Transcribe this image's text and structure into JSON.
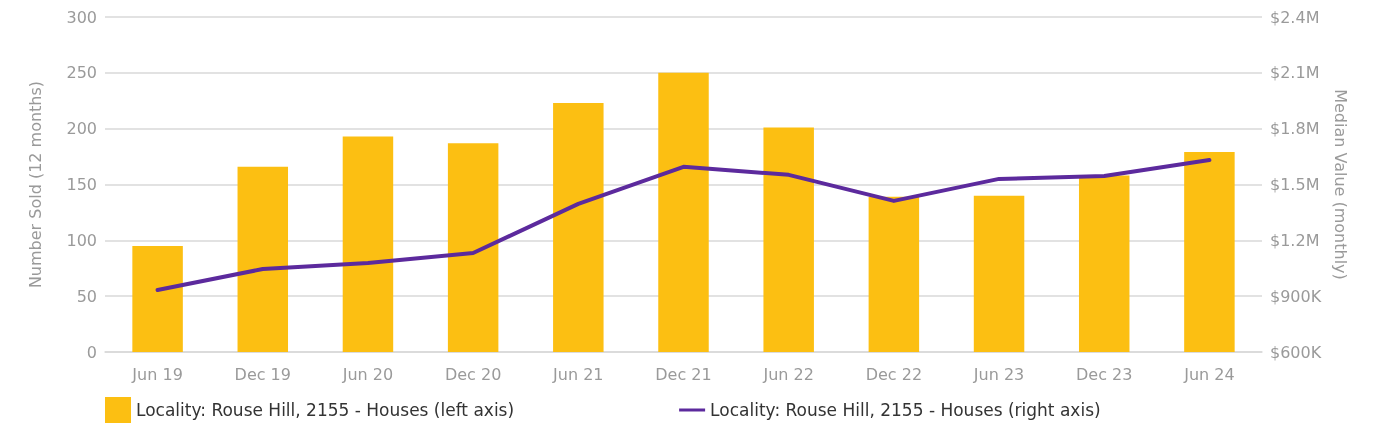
{
  "chart_data": {
    "type": "bar",
    "xlabel": null,
    "ylabel": "Number Sold (12 months)",
    "y2label": "Median Value (monthly)",
    "categories": [
      "Jun 19",
      "Dec 19",
      "Jun 20",
      "Dec 20",
      "Jun 21",
      "Dec 21",
      "Jun 22",
      "Dec 22",
      "Jun 23",
      "Dec 23",
      "Jun 24"
    ],
    "series": [
      {
        "name": "Locality: Rouse Hill, 2155 - Houses (left axis)",
        "color": "#fcbf12",
        "values": [
          95,
          166,
          193,
          187,
          223,
          250,
          201,
          139,
          140,
          158,
          179
        ]
      },
      {
        "name": "Locality: Rouse Hill, 2155 - Houses (right axis)",
        "type": "line",
        "axis": "y2",
        "color": "#5c2a9d",
        "values": [
          933000,
          1046000,
          1078000,
          1132000,
          1396000,
          1595000,
          1552000,
          1412000,
          1530000,
          1546000,
          1632000
        ]
      }
    ],
    "ylim": [
      0,
      300
    ],
    "yticks": [
      0,
      50,
      100,
      150,
      200,
      250,
      300
    ],
    "y2lim": [
      600000,
      2400000
    ],
    "y2ticks": [
      {
        "value": 600000,
        "label": "$600K"
      },
      {
        "value": 900000,
        "label": "$900K"
      },
      {
        "value": 1200000,
        "label": "$1.2M"
      },
      {
        "value": 1500000,
        "label": "$1.5M"
      },
      {
        "value": 1800000,
        "label": "$1.8M"
      },
      {
        "value": 2100000,
        "label": "$2.1M"
      },
      {
        "value": 2400000,
        "label": "$2.4M"
      }
    ],
    "grid": "y",
    "legend": "bottom",
    "marker": "none",
    "line_style": "solid"
  }
}
